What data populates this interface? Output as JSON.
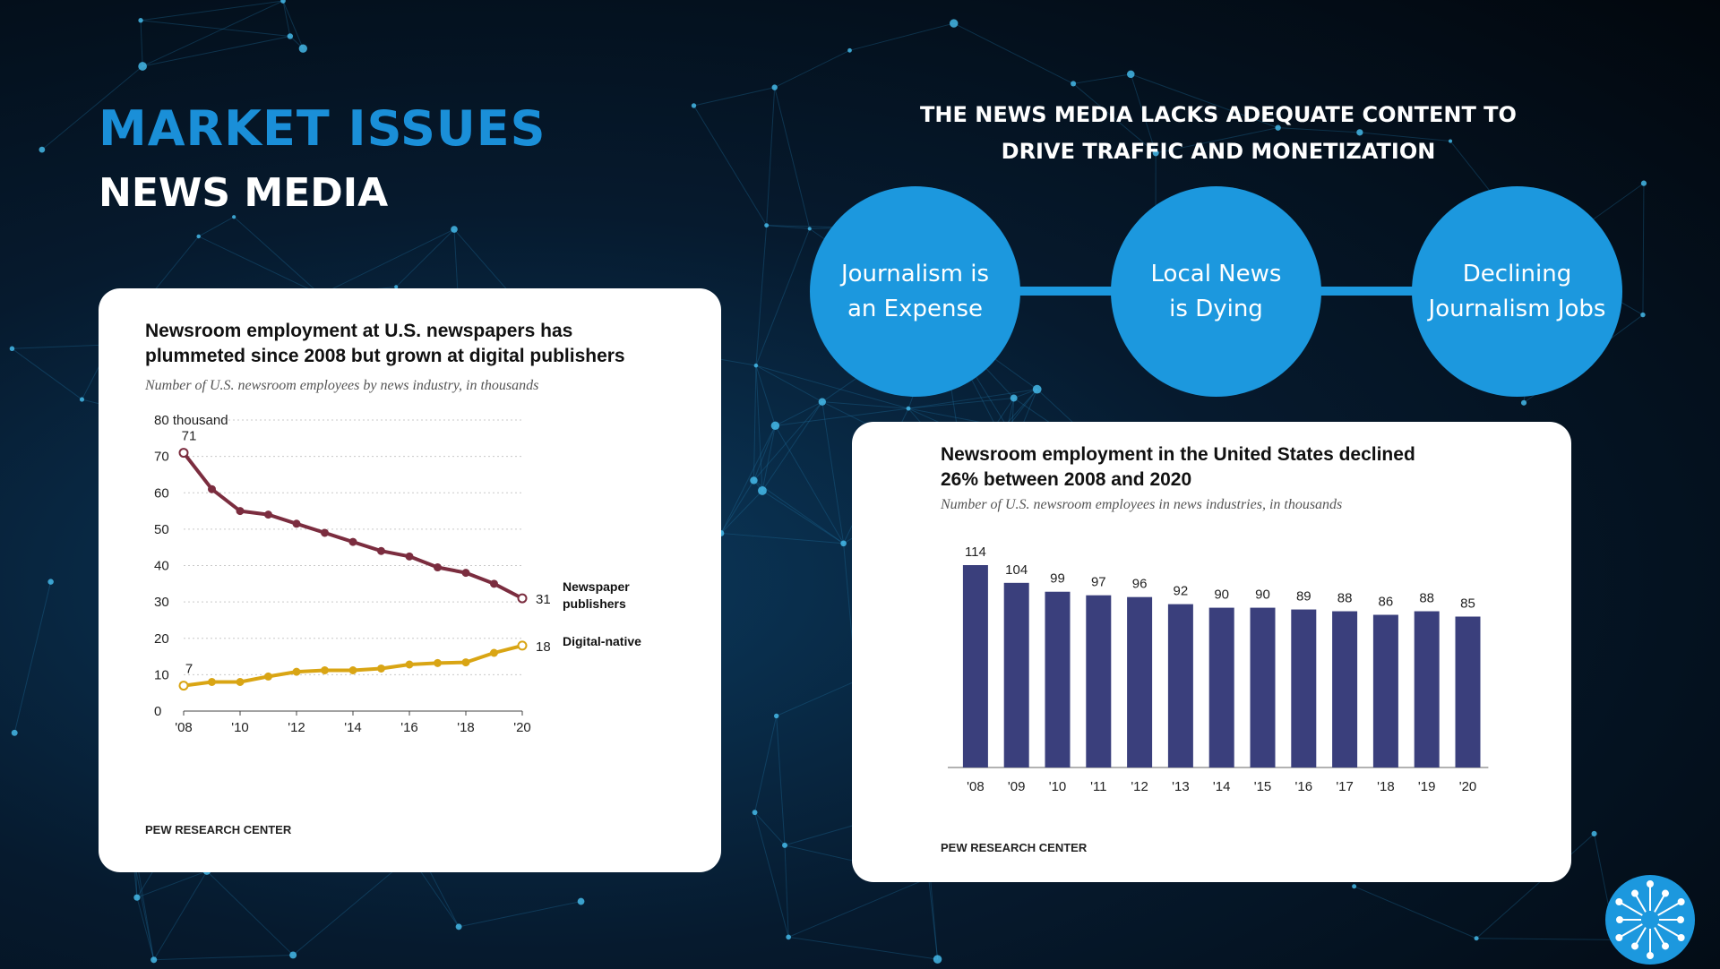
{
  "page": {
    "title": "MARKET ISSUES",
    "subtitle": "NEWS MEDIA"
  },
  "headline": {
    "line1": "THE NEWS MEDIA LACKS ADEQUATE CONTENT TO",
    "line2": "DRIVE TRAFFIC AND MONETIZATION"
  },
  "issues": [
    {
      "label": "Journalism is\nan Expense"
    },
    {
      "label": "Local News\nis Dying"
    },
    {
      "label": "Declining\nJournalism Jobs"
    }
  ],
  "colors": {
    "accent": "#1c98de",
    "title_blue": "#1a8fd8",
    "newspaper": "#7b2d3f",
    "digital": "#d9a514",
    "bars": "#3a3f7c"
  },
  "chart_data": [
    {
      "type": "line",
      "title": "Newsroom employment at U.S. newspapers has plummeted since 2008 but grown at digital publishers",
      "title_line1": "Newsroom employment at U.S. newspapers has",
      "title_line2": "plummeted since 2008 but grown at digital publishers",
      "subtitle": "Number of U.S. newsroom employees by news industry, in thousands",
      "source": "PEW RESEARCH CENTER",
      "x": [
        2008,
        2009,
        2010,
        2011,
        2012,
        2013,
        2014,
        2015,
        2016,
        2017,
        2018,
        2019,
        2020
      ],
      "x_ticks": [
        "'08",
        "'10",
        "'12",
        "'14",
        "'16",
        "'18",
        "'20"
      ],
      "y_ticks": [
        "0",
        "10",
        "20",
        "30",
        "40",
        "50",
        "60",
        "70",
        "80 thousand"
      ],
      "ylim": [
        0,
        80
      ],
      "grid": true,
      "series": [
        {
          "name": "Newspaper publishers",
          "name_line1": "Newspaper",
          "name_line2": "publishers",
          "values": [
            71,
            61,
            55,
            54,
            51.5,
            49,
            46.5,
            44,
            42.5,
            39.5,
            38,
            35,
            31
          ],
          "start_label": "71",
          "end_label": "31",
          "color": "#7b2d3f"
        },
        {
          "name": "Digital-native",
          "values": [
            7,
            8,
            8,
            9.5,
            10.8,
            11.2,
            11.2,
            11.7,
            12.8,
            13.2,
            13.4,
            16,
            18
          ],
          "start_label": "7",
          "end_label": "18",
          "color": "#d9a514"
        }
      ]
    },
    {
      "type": "bar",
      "title": "Newsroom employment in the United States declined 26% between 2008 and 2020",
      "title_line1": "Newsroom employment in the United States declined",
      "title_line2": "26% between 2008 and 2020",
      "subtitle": "Number of U.S. newsroom employees in news industries, in thousands",
      "source": "PEW RESEARCH CENTER",
      "categories": [
        "'08",
        "'09",
        "'10",
        "'11",
        "'12",
        "'13",
        "'14",
        "'15",
        "'16",
        "'17",
        "'18",
        "'19",
        "'20"
      ],
      "values": [
        114,
        104,
        99,
        97,
        96,
        92,
        90,
        90,
        89,
        88,
        86,
        88,
        85
      ],
      "color": "#3a3f7c"
    }
  ]
}
